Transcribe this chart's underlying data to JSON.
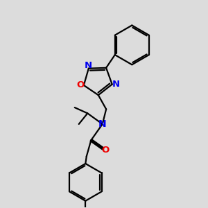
{
  "bg_color": "#dcdcdc",
  "bond_color": "#000000",
  "N_color": "#0000ee",
  "O_color": "#ee0000",
  "line_width": 1.6,
  "figsize": [
    3.0,
    3.0
  ],
  "dpi": 100,
  "xlim": [
    0,
    10
  ],
  "ylim": [
    0,
    10
  ]
}
